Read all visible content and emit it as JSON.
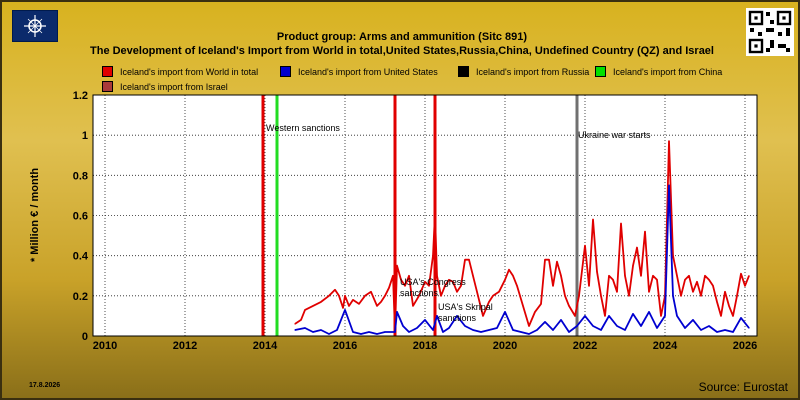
{
  "header": {
    "title_line1": "Product group: Arms and ammunition (Sitc 891)",
    "title_line2": "The Development of Iceland's Import from World in total,United States,Russia,China, Undefined Country (QZ) and Israel"
  },
  "footer": {
    "date": "17.8.2026",
    "source": "Source: Eurostat"
  },
  "chart_data": {
    "type": "line",
    "ylabel": "* Million € / month",
    "xlim": [
      2009.7,
      2026.3
    ],
    "ylim": [
      0,
      1.2
    ],
    "x_ticks": [
      2010,
      2012,
      2014,
      2016,
      2018,
      2020,
      2022,
      2024,
      2026
    ],
    "x_tick_labels": [
      "2010",
      "2012",
      "2014",
      "2016",
      "2018",
      "2020",
      "2022",
      "2024",
      "2026"
    ],
    "y_ticks": [
      0,
      0.2,
      0.4,
      0.6,
      0.8,
      1,
      1.2
    ],
    "y_tick_labels": [
      "0",
      "0.2",
      "0.4",
      "0.6",
      "0.8",
      "1",
      "1.2"
    ],
    "grid": true,
    "legend_position": "top",
    "series": [
      {
        "name": "Iceland's import from World in total",
        "color": "#e00000",
        "points": [
          [
            2014.75,
            0.06
          ],
          [
            2014.9,
            0.08
          ],
          [
            2015.0,
            0.13
          ],
          [
            2015.2,
            0.15
          ],
          [
            2015.4,
            0.17
          ],
          [
            2015.6,
            0.2
          ],
          [
            2015.75,
            0.23
          ],
          [
            2015.85,
            0.2
          ],
          [
            2015.95,
            0.14
          ],
          [
            2016.0,
            0.2
          ],
          [
            2016.1,
            0.15
          ],
          [
            2016.2,
            0.18
          ],
          [
            2016.35,
            0.16
          ],
          [
            2016.5,
            0.2
          ],
          [
            2016.65,
            0.22
          ],
          [
            2016.8,
            0.15
          ],
          [
            2016.9,
            0.17
          ],
          [
            2017.0,
            0.2
          ],
          [
            2017.1,
            0.24
          ],
          [
            2017.2,
            0.3
          ],
          [
            2017.25,
            0.02
          ],
          [
            2017.3,
            0.35
          ],
          [
            2017.4,
            0.28
          ],
          [
            2017.5,
            0.25
          ],
          [
            2017.6,
            0.3
          ],
          [
            2017.7,
            0.15
          ],
          [
            2017.85,
            0.2
          ],
          [
            2018.0,
            0.27
          ],
          [
            2018.1,
            0.25
          ],
          [
            2018.2,
            0.4
          ],
          [
            2018.25,
            0.61
          ],
          [
            2018.3,
            0.3
          ],
          [
            2018.4,
            0.2
          ],
          [
            2018.5,
            0.25
          ],
          [
            2018.6,
            0.28
          ],
          [
            2018.7,
            0.27
          ],
          [
            2018.8,
            0.22
          ],
          [
            2018.9,
            0.25
          ],
          [
            2019.0,
            0.38
          ],
          [
            2019.1,
            0.38
          ],
          [
            2019.2,
            0.3
          ],
          [
            2019.3,
            0.22
          ],
          [
            2019.45,
            0.1
          ],
          [
            2019.6,
            0.17
          ],
          [
            2019.7,
            0.2
          ],
          [
            2019.85,
            0.22
          ],
          [
            2020.0,
            0.28
          ],
          [
            2020.1,
            0.33
          ],
          [
            2020.2,
            0.3
          ],
          [
            2020.3,
            0.25
          ],
          [
            2020.45,
            0.15
          ],
          [
            2020.6,
            0.05
          ],
          [
            2020.75,
            0.12
          ],
          [
            2020.9,
            0.16
          ],
          [
            2021.0,
            0.38
          ],
          [
            2021.1,
            0.38
          ],
          [
            2021.2,
            0.25
          ],
          [
            2021.3,
            0.37
          ],
          [
            2021.4,
            0.3
          ],
          [
            2021.5,
            0.2
          ],
          [
            2021.6,
            0.15
          ],
          [
            2021.75,
            0.1
          ],
          [
            2021.85,
            0.2
          ],
          [
            2022.0,
            0.45
          ],
          [
            2022.1,
            0.25
          ],
          [
            2022.2,
            0.58
          ],
          [
            2022.3,
            0.32
          ],
          [
            2022.4,
            0.2
          ],
          [
            2022.5,
            0.1
          ],
          [
            2022.6,
            0.3
          ],
          [
            2022.7,
            0.28
          ],
          [
            2022.8,
            0.22
          ],
          [
            2022.9,
            0.56
          ],
          [
            2023.0,
            0.3
          ],
          [
            2023.1,
            0.2
          ],
          [
            2023.2,
            0.35
          ],
          [
            2023.3,
            0.44
          ],
          [
            2023.4,
            0.3
          ],
          [
            2023.5,
            0.52
          ],
          [
            2023.6,
            0.22
          ],
          [
            2023.7,
            0.3
          ],
          [
            2023.8,
            0.28
          ],
          [
            2023.9,
            0.1
          ],
          [
            2024.0,
            0.2
          ],
          [
            2024.1,
            0.97
          ],
          [
            2024.2,
            0.4
          ],
          [
            2024.3,
            0.3
          ],
          [
            2024.4,
            0.2
          ],
          [
            2024.5,
            0.28
          ],
          [
            2024.6,
            0.3
          ],
          [
            2024.7,
            0.22
          ],
          [
            2024.8,
            0.27
          ],
          [
            2024.9,
            0.2
          ],
          [
            2025.0,
            0.3
          ],
          [
            2025.1,
            0.28
          ],
          [
            2025.2,
            0.25
          ],
          [
            2025.3,
            0.17
          ],
          [
            2025.4,
            0.1
          ],
          [
            2025.5,
            0.22
          ],
          [
            2025.6,
            0.15
          ],
          [
            2025.7,
            0.1
          ],
          [
            2025.8,
            0.2
          ],
          [
            2025.9,
            0.31
          ],
          [
            2026.0,
            0.25
          ],
          [
            2026.1,
            0.3
          ]
        ]
      },
      {
        "name": "Iceland's import from United States",
        "color": "#0000d0",
        "points": [
          [
            2014.75,
            0.03
          ],
          [
            2015.0,
            0.04
          ],
          [
            2015.2,
            0.02
          ],
          [
            2015.4,
            0.03
          ],
          [
            2015.6,
            0.01
          ],
          [
            2015.8,
            0.03
          ],
          [
            2016.0,
            0.13
          ],
          [
            2016.2,
            0.02
          ],
          [
            2016.4,
            0.01
          ],
          [
            2016.6,
            0.02
          ],
          [
            2016.8,
            0.01
          ],
          [
            2017.0,
            0.02
          ],
          [
            2017.25,
            0.02
          ],
          [
            2017.3,
            0.12
          ],
          [
            2017.45,
            0.05
          ],
          [
            2017.6,
            0.02
          ],
          [
            2017.8,
            0.04
          ],
          [
            2018.0,
            0.08
          ],
          [
            2018.2,
            0.03
          ],
          [
            2018.3,
            0.1
          ],
          [
            2018.45,
            0.02
          ],
          [
            2018.6,
            0.04
          ],
          [
            2018.8,
            0.1
          ],
          [
            2019.0,
            0.05
          ],
          [
            2019.2,
            0.03
          ],
          [
            2019.4,
            0.02
          ],
          [
            2019.6,
            0.03
          ],
          [
            2019.8,
            0.04
          ],
          [
            2020.0,
            0.12
          ],
          [
            2020.2,
            0.03
          ],
          [
            2020.4,
            0.02
          ],
          [
            2020.6,
            0.01
          ],
          [
            2020.8,
            0.03
          ],
          [
            2021.0,
            0.07
          ],
          [
            2021.2,
            0.03
          ],
          [
            2021.4,
            0.08
          ],
          [
            2021.6,
            0.02
          ],
          [
            2021.8,
            0.05
          ],
          [
            2022.0,
            0.1
          ],
          [
            2022.2,
            0.05
          ],
          [
            2022.4,
            0.03
          ],
          [
            2022.6,
            0.1
          ],
          [
            2022.8,
            0.05
          ],
          [
            2023.0,
            0.03
          ],
          [
            2023.2,
            0.11
          ],
          [
            2023.4,
            0.05
          ],
          [
            2023.6,
            0.12
          ],
          [
            2023.8,
            0.04
          ],
          [
            2024.0,
            0.1
          ],
          [
            2024.1,
            0.75
          ],
          [
            2024.2,
            0.2
          ],
          [
            2024.3,
            0.1
          ],
          [
            2024.5,
            0.04
          ],
          [
            2024.7,
            0.08
          ],
          [
            2024.9,
            0.03
          ],
          [
            2025.1,
            0.05
          ],
          [
            2025.3,
            0.02
          ],
          [
            2025.5,
            0.03
          ],
          [
            2025.7,
            0.02
          ],
          [
            2025.9,
            0.09
          ],
          [
            2026.1,
            0.04
          ]
        ]
      },
      {
        "name": "Iceland's import from Russia",
        "color": "#000000",
        "points": []
      },
      {
        "name": "Iceland's import from China",
        "color": "#00e000",
        "points": []
      },
      {
        "name": "Iceland's import from Israel",
        "color": "#a83a3a",
        "points": []
      }
    ],
    "events": [
      {
        "x": 2013.95,
        "color": "#e00000",
        "label": ""
      },
      {
        "x": 2014.3,
        "color": "#22dd22",
        "label": "Western sanctions"
      },
      {
        "x": 2017.25,
        "color": "#e00000",
        "label": "USA's Congress sanctions"
      },
      {
        "x": 2018.25,
        "color": "#e00000",
        "label": "USA's Skripal sanctions"
      },
      {
        "x": 2021.8,
        "color": "#707070",
        "label": "Ukraine war starts"
      }
    ]
  }
}
